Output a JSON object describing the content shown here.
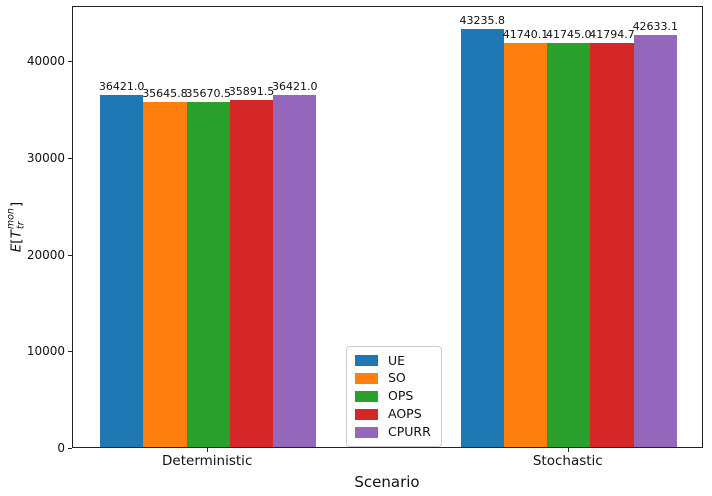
{
  "chart_data": {
    "type": "bar",
    "title": "",
    "xlabel": "Scenario",
    "ylabel": "E[T_tr^mon]",
    "ylabel_parts": {
      "e": "E",
      "open_bracket": "[",
      "t": "T",
      "sup": "mon",
      "sub": "tr",
      "close_bracket": "]"
    },
    "categories": [
      "Deterministic",
      "Stochastic"
    ],
    "series": [
      {
        "name": "UE",
        "color": "#1f77b4",
        "values": [
          36421.0,
          43235.8
        ]
      },
      {
        "name": "SO",
        "color": "#ff7f0e",
        "values": [
          35645.8,
          41740.1
        ]
      },
      {
        "name": "OPS",
        "color": "#2ca02c",
        "values": [
          35670.5,
          41745.0
        ]
      },
      {
        "name": "AOPS",
        "color": "#d62728",
        "values": [
          35891.5,
          41794.7
        ]
      },
      {
        "name": "CPURR",
        "color": "#9467bd",
        "values": [
          36421.0,
          42633.1
        ]
      }
    ],
    "bar_value_labels": [
      [
        "36421.0",
        "35645.8",
        "35670.5",
        "35891.5",
        "36421.0"
      ],
      [
        "43235.8",
        "41740.1",
        "41745.0",
        "41794.7",
        "42633.1"
      ]
    ],
    "yticks": [
      0,
      10000,
      20000,
      30000,
      40000
    ],
    "ytick_labels": [
      "0",
      "10000",
      "20000",
      "30000",
      "40000"
    ],
    "ylim": [
      0,
      45700
    ],
    "xlim": [
      -0.375,
      1.375
    ],
    "bar_width": 0.12,
    "grid": false,
    "legend": {
      "position": "inside-lower-center",
      "entries": [
        "UE",
        "SO",
        "OPS",
        "AOPS",
        "CPURR"
      ]
    }
  }
}
